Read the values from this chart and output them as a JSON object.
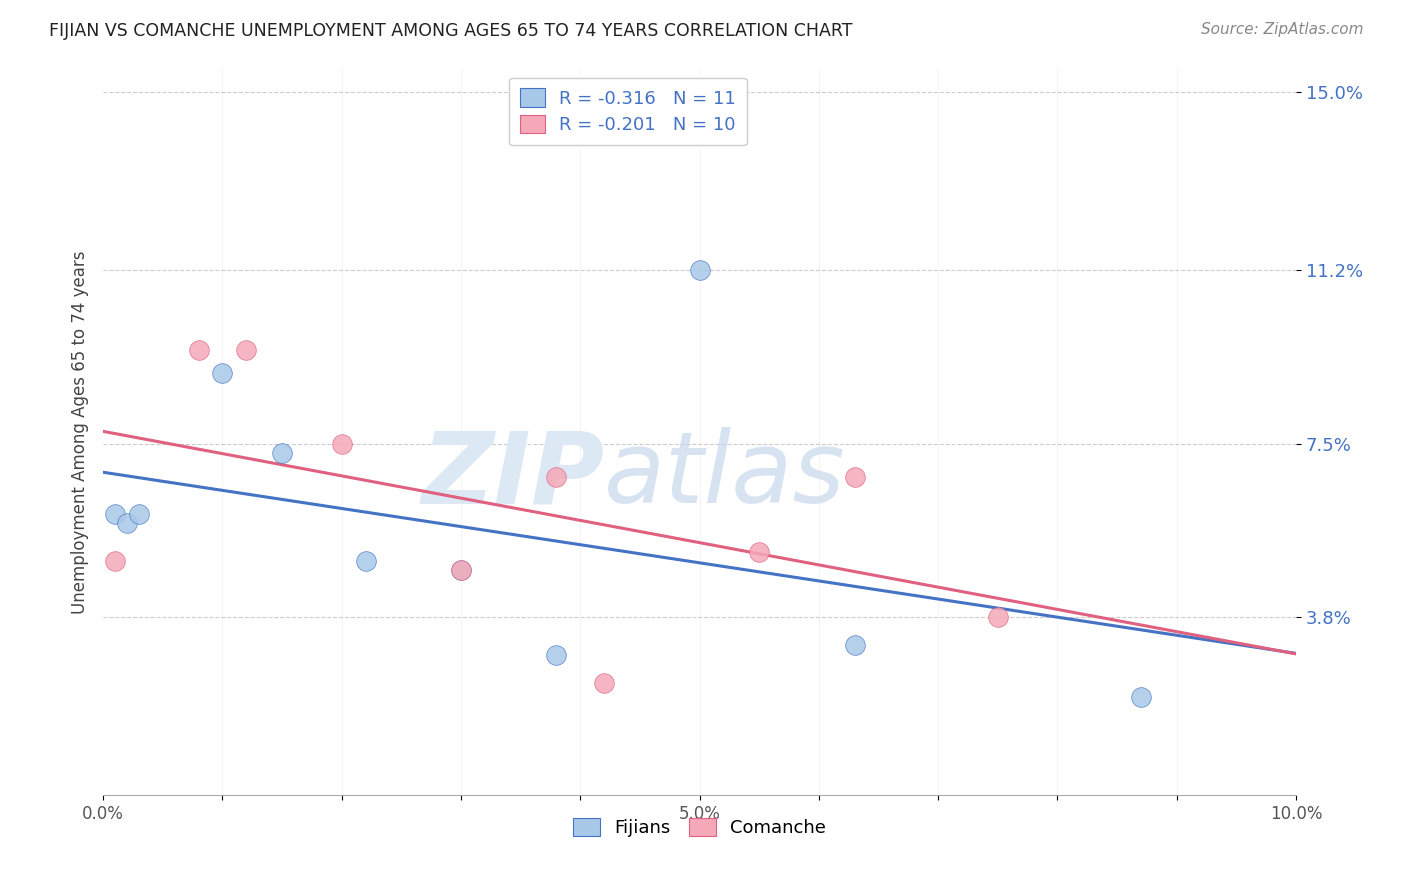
{
  "title": "FIJIAN VS COMANCHE UNEMPLOYMENT AMONG AGES 65 TO 74 YEARS CORRELATION CHART",
  "source": "Source: ZipAtlas.com",
  "ylabel": "Unemployment Among Ages 65 to 74 years",
  "xlim": [
    0.0,
    0.1
  ],
  "ylim": [
    0.0,
    0.155
  ],
  "xticks": [
    0.0,
    0.01,
    0.02,
    0.03,
    0.04,
    0.05,
    0.06,
    0.07,
    0.08,
    0.09,
    0.1
  ],
  "xticklabels": [
    "0.0%",
    "",
    "",
    "",
    "",
    "",
    "",
    "",
    "",
    "",
    "10.0%"
  ],
  "ytick_positions": [
    0.038,
    0.075,
    0.112,
    0.15
  ],
  "ytick_labels": [
    "3.8%",
    "7.5%",
    "11.2%",
    "15.0%"
  ],
  "fijians_x": [
    0.001,
    0.002,
    0.003,
    0.01,
    0.015,
    0.022,
    0.03,
    0.038,
    0.05,
    0.063,
    0.087
  ],
  "fijians_y": [
    0.06,
    0.058,
    0.06,
    0.09,
    0.073,
    0.05,
    0.048,
    0.03,
    0.112,
    0.032,
    0.021
  ],
  "comanche_x": [
    0.001,
    0.008,
    0.012,
    0.02,
    0.03,
    0.038,
    0.042,
    0.055,
    0.063,
    0.075
  ],
  "comanche_y": [
    0.05,
    0.095,
    0.095,
    0.075,
    0.048,
    0.068,
    0.024,
    0.052,
    0.068,
    0.038
  ],
  "fijians_color": "#a8c8e8",
  "comanche_color": "#f4a8b8",
  "fijians_line_color": "#4472c4",
  "comanche_line_color": "#e06080",
  "fijians_r": -0.316,
  "comanche_r": -0.201,
  "fijians_n": 11,
  "comanche_n": 10,
  "marker_size": 200,
  "background_color": "#ffffff",
  "grid_color": "#cccccc",
  "watermark_zip": "ZIP",
  "watermark_atlas": "atlas",
  "watermark_color": "#dde8f5",
  "tick_color": "#4472c4"
}
